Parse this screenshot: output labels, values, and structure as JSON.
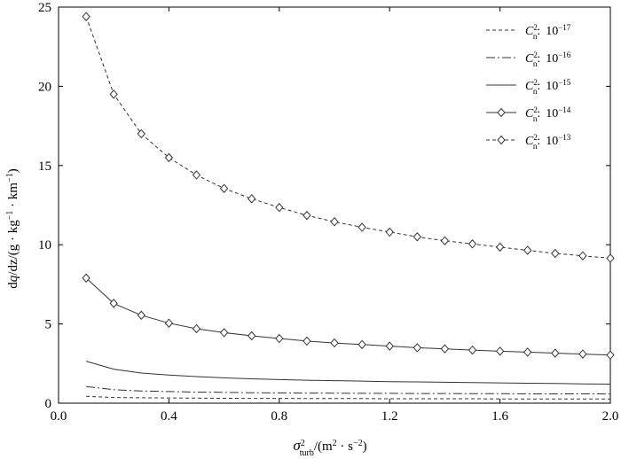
{
  "chart_data": {
    "type": "line",
    "xlabel": "σ²turb/(m² · s⁻²)",
    "ylabel": "dq/dz/(g · kg⁻¹ · km⁻¹)",
    "xlabel_parts": {
      "sym": "σ",
      "sub": "turb",
      "sup": "2",
      "unit": "/(m",
      "unit_sup": "2",
      "unit_mid": " · s",
      "unit_sup2": "−2",
      "unit_end": ")"
    },
    "ylabel_parts": {
      "d": "d",
      "q": "q",
      "rest": "/dz/(g · kg",
      "sup1": "−1",
      "mid": " · km",
      "sup2": "−1",
      "end": ")"
    },
    "xlim": [
      0.0,
      2.0
    ],
    "ylim": [
      0,
      25
    ],
    "x_ticks": [
      0.0,
      0.4,
      0.8,
      1.2,
      1.6,
      2.0
    ],
    "x_tick_labels": [
      "0.0",
      "0.4",
      "0.8",
      "1.2",
      "1.6",
      "2.0"
    ],
    "y_ticks": [
      0,
      5,
      10,
      15,
      20,
      25
    ],
    "y_tick_labels": [
      "0",
      "5",
      "10",
      "15",
      "20",
      "25"
    ],
    "grid": false,
    "legend_position": "top-right",
    "x": [
      0.1,
      0.2,
      0.3,
      0.4,
      0.5,
      0.6,
      0.7,
      0.8,
      0.9,
      1.0,
      1.1,
      1.2,
      1.3,
      1.4,
      1.5,
      1.6,
      1.7,
      1.8,
      1.9,
      2.0
    ],
    "series": [
      {
        "name": "10⁻¹⁷",
        "legend_prefix": "C",
        "legend_sup": "2",
        "legend_sub": "n",
        "legend_sep": ":",
        "legend_base": "10",
        "legend_exp": "−17",
        "style": "dashed",
        "markers": false,
        "values": [
          0.43,
          0.36,
          0.34,
          0.33,
          0.32,
          0.31,
          0.3,
          0.3,
          0.29,
          0.29,
          0.29,
          0.28,
          0.28,
          0.28,
          0.28,
          0.27,
          0.27,
          0.27,
          0.27,
          0.27
        ]
      },
      {
        "name": "10⁻¹⁶",
        "legend_prefix": "C",
        "legend_sup": "2",
        "legend_sub": "n",
        "legend_sep": ":",
        "legend_base": "10",
        "legend_exp": "−16",
        "style": "dashdot",
        "markers": false,
        "values": [
          1.05,
          0.85,
          0.77,
          0.73,
          0.7,
          0.68,
          0.66,
          0.65,
          0.64,
          0.63,
          0.62,
          0.62,
          0.61,
          0.61,
          0.6,
          0.6,
          0.59,
          0.59,
          0.59,
          0.58
        ]
      },
      {
        "name": "10⁻¹⁵",
        "legend_prefix": "C",
        "legend_sup": "2",
        "legend_sub": "n",
        "legend_sep": ":",
        "legend_base": "10",
        "legend_exp": "−15",
        "style": "solid",
        "markers": false,
        "values": [
          2.65,
          2.15,
          1.9,
          1.78,
          1.68,
          1.6,
          1.54,
          1.49,
          1.45,
          1.42,
          1.39,
          1.36,
          1.34,
          1.32,
          1.3,
          1.28,
          1.26,
          1.24,
          1.22,
          1.2
        ]
      },
      {
        "name": "10⁻¹⁴",
        "legend_prefix": "C",
        "legend_sup": "2",
        "legend_sub": "n",
        "legend_sep": ":",
        "legend_base": "10",
        "legend_exp": "−14",
        "style": "solid",
        "markers": true,
        "values": [
          7.9,
          6.3,
          5.55,
          5.05,
          4.7,
          4.45,
          4.25,
          4.08,
          3.92,
          3.8,
          3.7,
          3.6,
          3.5,
          3.43,
          3.35,
          3.28,
          3.22,
          3.16,
          3.1,
          3.04
        ]
      },
      {
        "name": "10⁻¹³",
        "legend_prefix": "C",
        "legend_sup": "2",
        "legend_sub": "n",
        "legend_sep": ":",
        "legend_base": "10",
        "legend_exp": "−13",
        "style": "dashed",
        "markers": true,
        "values": [
          24.4,
          19.5,
          17.0,
          15.5,
          14.4,
          13.55,
          12.9,
          12.35,
          11.85,
          11.45,
          11.1,
          10.8,
          10.5,
          10.25,
          10.05,
          9.85,
          9.65,
          9.45,
          9.3,
          9.15
        ]
      }
    ]
  }
}
